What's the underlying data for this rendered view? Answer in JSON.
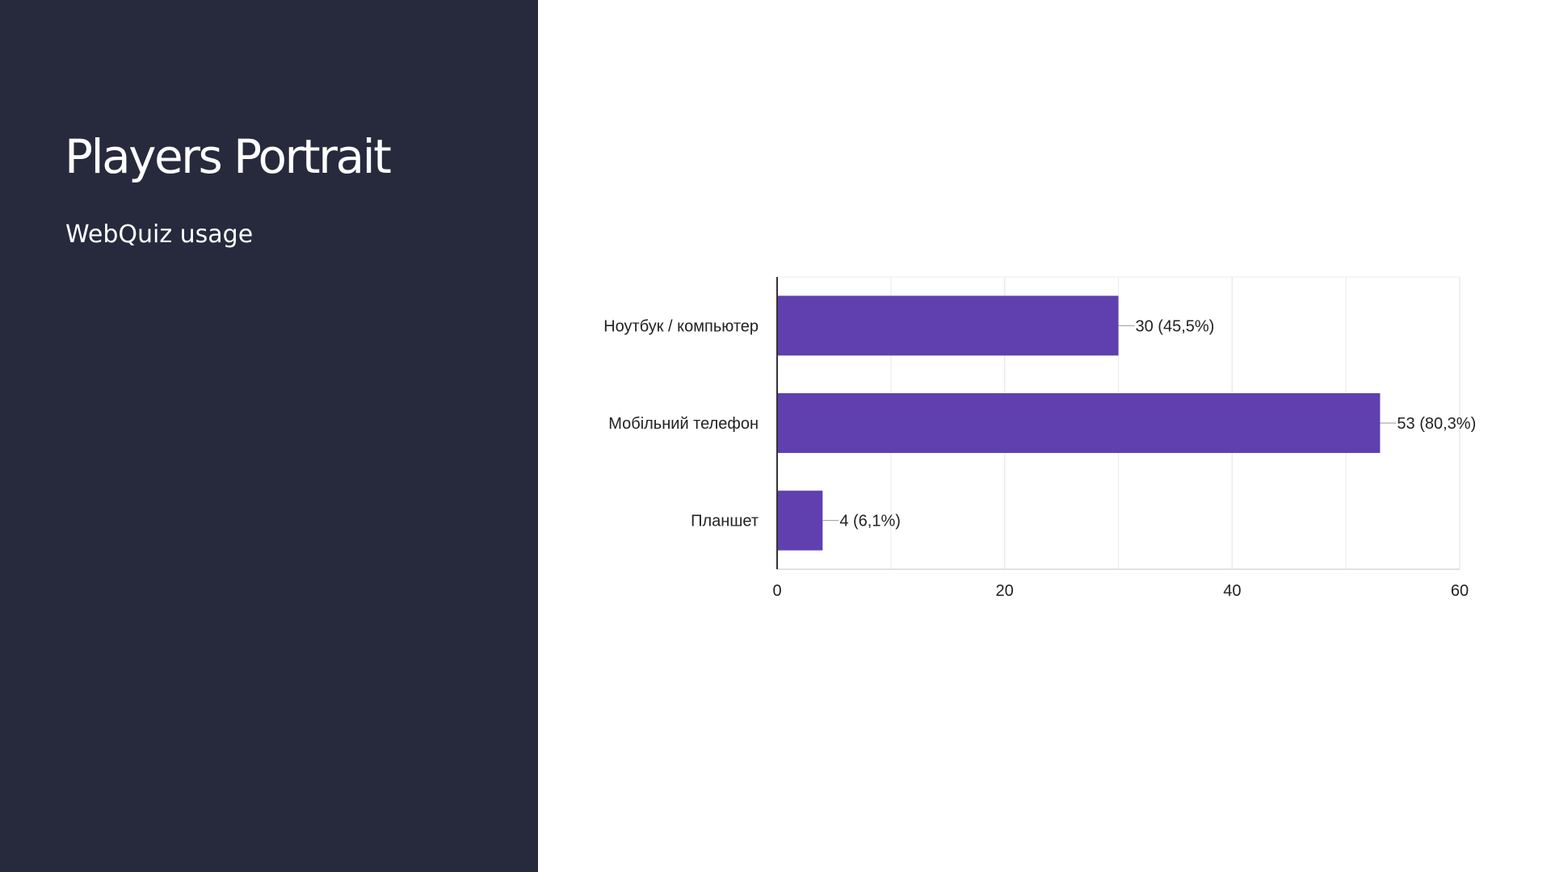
{
  "slide": {
    "title": "Players Portrait",
    "subtitle": "WebQuiz usage"
  },
  "colors": {
    "sidebar_bg": "#272a3d",
    "bar": "#5f40ae",
    "grid": "#ebebeb",
    "axis": "#333333"
  },
  "chart_data": {
    "type": "bar",
    "orientation": "horizontal",
    "categories": [
      "Ноутбук / компьютер",
      "Мобільний телефон",
      "Планшет"
    ],
    "values": [
      30,
      53,
      4
    ],
    "data_labels": [
      "30 (45,5%)",
      "53 (80,3%)",
      "4 (6,1%)"
    ],
    "xlim": [
      0,
      60
    ],
    "x_ticks": [
      "0",
      "20",
      "40",
      "60"
    ],
    "x_tick_values": [
      0,
      20,
      40,
      60
    ],
    "minor_grid_step": 10,
    "grid": true,
    "legend": "none"
  }
}
